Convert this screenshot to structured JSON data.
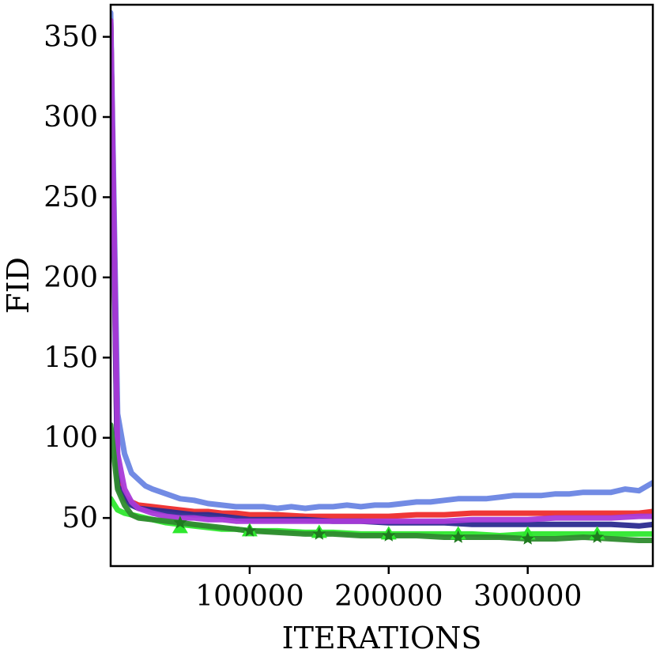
{
  "chart_data": {
    "type": "line",
    "title": "",
    "xlabel": "ITERATIONS",
    "ylabel": "FID",
    "xlim": [
      0,
      390000
    ],
    "ylim": [
      20,
      370
    ],
    "xticks": [
      100000,
      200000,
      300000
    ],
    "xtick_labels": [
      "100000",
      "200000",
      "300000"
    ],
    "yticks": [
      50,
      100,
      150,
      200,
      250,
      300,
      350
    ],
    "ytick_labels": [
      "50",
      "100",
      "150",
      "200",
      "250",
      "300",
      "350"
    ],
    "grid": false,
    "legend": "none",
    "series": [
      {
        "color": "#6a85e3",
        "marker": "none",
        "x": [
          0,
          5000,
          10000,
          15000,
          20000,
          25000,
          30000,
          40000,
          50000,
          60000,
          70000,
          80000,
          90000,
          100000,
          110000,
          120000,
          130000,
          140000,
          150000,
          160000,
          170000,
          180000,
          190000,
          200000,
          210000,
          220000,
          230000,
          240000,
          250000,
          260000,
          270000,
          280000,
          290000,
          300000,
          310000,
          320000,
          330000,
          340000,
          350000,
          360000,
          370000,
          380000,
          390000
        ],
        "y": [
          365,
          115,
          90,
          78,
          74,
          70,
          68,
          65,
          62,
          61,
          59,
          58,
          57,
          57,
          57,
          56,
          57,
          56,
          57,
          57,
          58,
          57,
          58,
          58,
          59,
          60,
          60,
          61,
          62,
          62,
          62,
          63,
          64,
          64,
          64,
          65,
          65,
          66,
          66,
          66,
          68,
          67,
          72
        ]
      },
      {
        "color": "#ee2c2c",
        "marker": "none",
        "x": [
          0,
          5000,
          10000,
          15000,
          20000,
          30000,
          40000,
          50000,
          60000,
          70000,
          80000,
          90000,
          100000,
          120000,
          140000,
          160000,
          180000,
          200000,
          220000,
          240000,
          260000,
          280000,
          300000,
          320000,
          340000,
          360000,
          380000,
          390000
        ],
        "y": [
          360,
          75,
          63,
          60,
          58,
          57,
          56,
          55,
          54,
          54,
          53,
          53,
          52,
          52,
          51,
          51,
          51,
          51,
          52,
          52,
          53,
          53,
          53,
          53,
          53,
          53,
          53,
          54
        ]
      },
      {
        "color": "#2b2b8f",
        "marker": "none",
        "x": [
          0,
          5000,
          10000,
          15000,
          20000,
          30000,
          40000,
          50000,
          60000,
          70000,
          80000,
          90000,
          100000,
          120000,
          140000,
          160000,
          180000,
          200000,
          220000,
          240000,
          260000,
          280000,
          300000,
          320000,
          340000,
          360000,
          380000,
          390000
        ],
        "y": [
          360,
          70,
          62,
          58,
          56,
          55,
          54,
          53,
          52,
          52,
          51,
          50,
          49,
          49,
          49,
          48,
          48,
          47,
          47,
          47,
          46,
          46,
          46,
          46,
          46,
          46,
          45,
          46
        ]
      },
      {
        "color": "#a93ad8",
        "marker": "none",
        "x": [
          0,
          5000,
          10000,
          15000,
          20000,
          30000,
          40000,
          50000,
          60000,
          70000,
          80000,
          90000,
          100000,
          120000,
          140000,
          160000,
          180000,
          200000,
          220000,
          240000,
          260000,
          280000,
          300000,
          320000,
          340000,
          360000,
          380000,
          390000
        ],
        "y": [
          360,
          90,
          68,
          60,
          56,
          53,
          51,
          50,
          50,
          49,
          49,
          48,
          48,
          48,
          48,
          48,
          48,
          48,
          48,
          48,
          49,
          49,
          49,
          50,
          50,
          50,
          51,
          51
        ]
      },
      {
        "color": "#2ee82e",
        "marker": "triangle",
        "x": [
          0,
          5000,
          10000,
          15000,
          20000,
          30000,
          40000,
          50000,
          60000,
          70000,
          80000,
          90000,
          100000,
          120000,
          140000,
          160000,
          180000,
          200000,
          220000,
          240000,
          260000,
          280000,
          300000,
          320000,
          340000,
          360000,
          380000,
          390000
        ],
        "y": [
          62,
          55,
          53,
          52,
          51,
          49,
          47,
          46,
          45,
          44,
          43,
          43,
          42,
          42,
          41,
          41,
          40,
          40,
          40,
          40,
          40,
          39,
          40,
          40,
          40,
          40,
          40,
          40
        ],
        "marker_x": [
          50000,
          100000,
          150000,
          200000,
          250000,
          300000,
          350000
        ],
        "marker_y": [
          44,
          42,
          41,
          40,
          40,
          40,
          40
        ]
      },
      {
        "color": "#2e8b2e",
        "marker": "star",
        "x": [
          0,
          5000,
          10000,
          15000,
          20000,
          30000,
          40000,
          50000,
          60000,
          70000,
          80000,
          90000,
          100000,
          120000,
          140000,
          160000,
          180000,
          200000,
          220000,
          240000,
          260000,
          280000,
          300000,
          320000,
          340000,
          360000,
          380000,
          390000
        ],
        "y": [
          108,
          68,
          58,
          52,
          50,
          49,
          48,
          47,
          46,
          45,
          44,
          43,
          42,
          41,
          40,
          40,
          39,
          39,
          39,
          38,
          38,
          38,
          37,
          37,
          38,
          37,
          36,
          36
        ],
        "marker_x": [
          50000,
          100000,
          150000,
          200000,
          250000,
          300000,
          350000
        ],
        "marker_y": [
          47,
          42,
          40,
          39,
          38,
          37,
          38
        ]
      }
    ]
  }
}
